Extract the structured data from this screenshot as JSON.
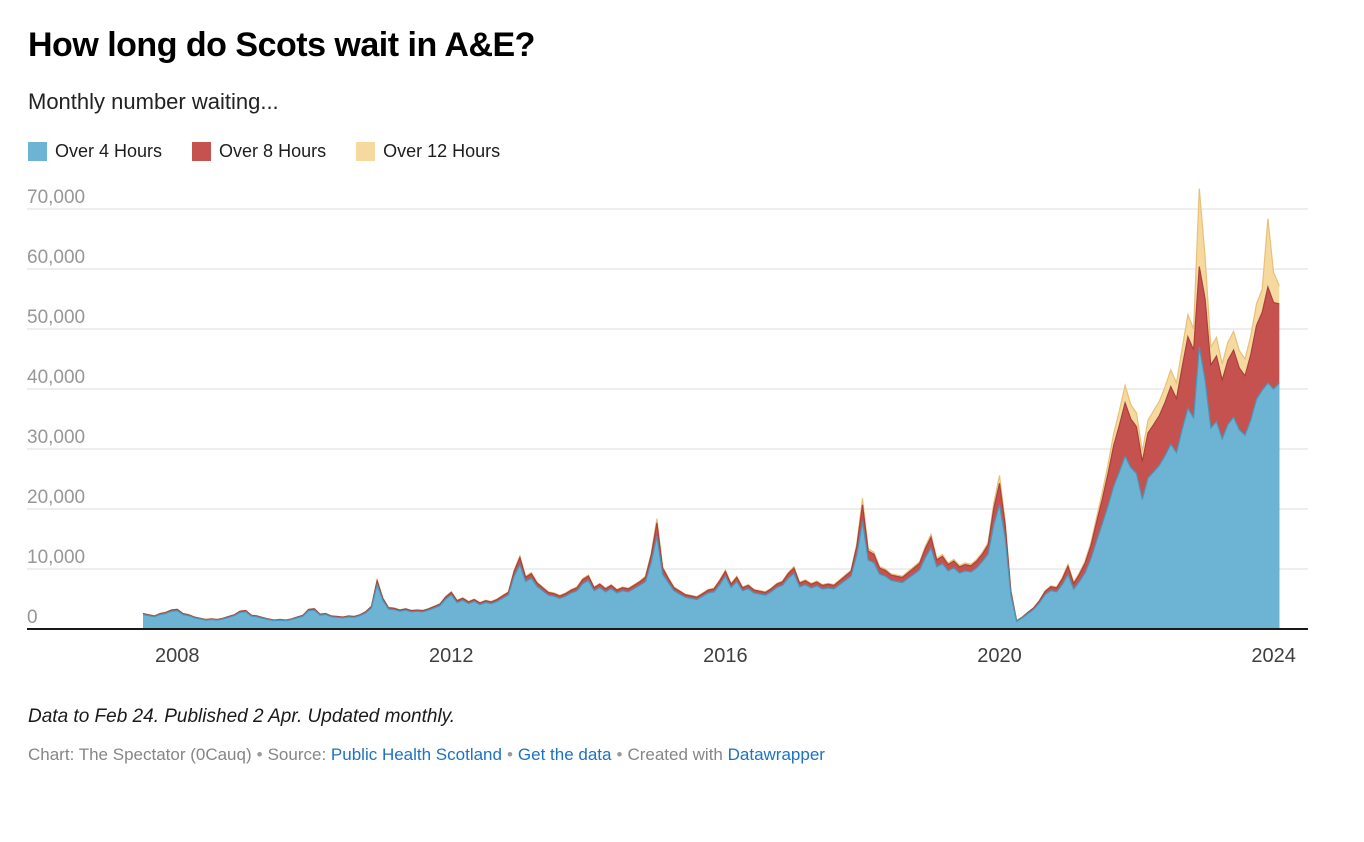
{
  "header": {
    "title": "How long do Scots wait in A&E?",
    "subtitle": "Monthly number waiting..."
  },
  "chart_data": {
    "type": "area",
    "stacked": true,
    "start": "2007-07",
    "end": "2024-02",
    "interval": "month",
    "grid": "horizontal",
    "legend_position": "top",
    "ylim": [
      0,
      73400
    ],
    "x_ticks": [
      {
        "label": "2008",
        "month_index": 6
      },
      {
        "label": "2012",
        "month_index": 54
      },
      {
        "label": "2016",
        "month_index": 102
      },
      {
        "label": "2020",
        "month_index": 150
      },
      {
        "label": "2024",
        "month_index": 198
      }
    ],
    "y_ticks": [
      {
        "value": 0,
        "label": "0"
      },
      {
        "value": 10000,
        "label": "10,000"
      },
      {
        "value": 20000,
        "label": "20,000"
      },
      {
        "value": 30000,
        "label": "30,000"
      },
      {
        "value": 40000,
        "label": "40,000"
      },
      {
        "value": 50000,
        "label": "50,000"
      },
      {
        "value": 60000,
        "label": "60,000"
      },
      {
        "value": 70000,
        "label": "70,000"
      }
    ],
    "series": [
      {
        "name": "Over 4 Hours",
        "color": "#6db3d4",
        "stroke": "#4a95ba",
        "values": [
          2420,
          2230,
          2040,
          2420,
          2600,
          2980,
          3060,
          2420,
          2230,
          1860,
          1680,
          1490,
          1580,
          1490,
          1680,
          1950,
          2230,
          2790,
          2880,
          2140,
          2040,
          1770,
          1580,
          1400,
          1490,
          1400,
          1580,
          1860,
          2140,
          3060,
          3150,
          2320,
          2420,
          2040,
          1950,
          1860,
          2040,
          1950,
          2230,
          2690,
          3520,
          7400,
          4780,
          3330,
          3240,
          2960,
          3150,
          2870,
          2960,
          2870,
          3150,
          3520,
          3880,
          4990,
          5700,
          4420,
          4780,
          4230,
          4600,
          4050,
          4420,
          4230,
          4600,
          5150,
          5700,
          8820,
          10700,
          7920,
          8460,
          7100,
          6370,
          5640,
          5460,
          5100,
          5460,
          6010,
          6370,
          7560,
          8100,
          6370,
          6920,
          6190,
          6730,
          6010,
          6370,
          6190,
          6730,
          7280,
          7920,
          11100,
          15500,
          9150,
          7740,
          6370,
          5820,
          5280,
          5100,
          4910,
          5460,
          6010,
          6190,
          7380,
          8820,
          6920,
          7920,
          6370,
          6730,
          6010,
          5820,
          5640,
          6190,
          6920,
          7280,
          8460,
          9250,
          7020,
          7380,
          6840,
          7200,
          6660,
          6840,
          6660,
          7380,
          8100,
          8820,
          12350,
          17900,
          11500,
          11050,
          9150,
          8800,
          8100,
          7920,
          7740,
          8450,
          9150,
          9850,
          11900,
          13500,
          10380,
          10900,
          9680,
          10200,
          9330,
          9680,
          9500,
          10200,
          11260,
          12500,
          17400,
          20700,
          15100,
          5630,
          1290,
          1850,
          2580,
          3310,
          4380,
          5760,
          6410,
          6200,
          7400,
          9100,
          6630,
          7900,
          9400,
          11700,
          14700,
          17550,
          20500,
          23800,
          26200,
          28800,
          26900,
          25900,
          21600,
          25200,
          26200,
          27300,
          28900,
          30800,
          29400,
          33300,
          36800,
          35200,
          47000,
          41500,
          33500,
          34600,
          31700,
          34100,
          35300,
          33200,
          32300,
          34800,
          38300,
          39800,
          41000,
          40000,
          41000
        ]
      },
      {
        "name": "Over 8 Hours",
        "color": "#c5524e",
        "stroke": "#ab403c",
        "values": [
          150,
          140,
          130,
          150,
          170,
          190,
          200,
          150,
          140,
          120,
          100,
          90,
          100,
          90,
          100,
          130,
          140,
          180,
          180,
          140,
          130,
          110,
          100,
          80,
          90,
          80,
          100,
          120,
          140,
          200,
          210,
          150,
          150,
          130,
          130,
          120,
          130,
          130,
          140,
          180,
          230,
          640,
          340,
          220,
          210,
          190,
          200,
          190,
          190,
          190,
          200,
          230,
          260,
          330,
          400,
          300,
          330,
          290,
          320,
          280,
          300,
          290,
          320,
          360,
          400,
          780,
          1200,
          700,
          750,
          560,
          500,
          450,
          430,
          400,
          430,
          470,
          500,
          670,
          720,
          500,
          540,
          490,
          530,
          470,
          500,
          490,
          530,
          580,
          700,
          1200,
          2200,
          1000,
          690,
          500,
          460,
          410,
          400,
          390,
          430,
          470,
          490,
          660,
          780,
          540,
          700,
          500,
          530,
          470,
          460,
          450,
          490,
          540,
          580,
          750,
          900,
          620,
          660,
          610,
          640,
          590,
          610,
          590,
          660,
          720,
          780,
          1450,
          2800,
          1500,
          1400,
          1000,
          960,
          880,
          860,
          850,
          920,
          1000,
          1080,
          1500,
          1800,
          1140,
          1200,
          1060,
          1120,
          1020,
          1060,
          1040,
          1120,
          1230,
          1500,
          2700,
          3600,
          2200,
          620,
          90,
          120,
          180,
          230,
          340,
          510,
          630,
          640,
          950,
          1350,
          930,
          1200,
          1600,
          2160,
          3100,
          4100,
          5400,
          6800,
          7800,
          8900,
          8100,
          7800,
          6300,
          7500,
          7900,
          8300,
          8900,
          9600,
          9000,
          10400,
          11900,
          11300,
          13400,
          13500,
          10500,
          10900,
          9800,
          10700,
          11200,
          10300,
          9900,
          10900,
          12300,
          13000,
          16000,
          14400,
          13200
        ]
      },
      {
        "name": "Over 12 Hours",
        "color": "#f6d99f",
        "stroke": "#e9c076",
        "values": [
          30,
          30,
          30,
          30,
          30,
          30,
          40,
          30,
          30,
          20,
          20,
          20,
          20,
          20,
          20,
          20,
          30,
          30,
          40,
          20,
          30,
          20,
          20,
          20,
          20,
          20,
          20,
          20,
          20,
          40,
          40,
          30,
          30,
          30,
          20,
          20,
          30,
          20,
          30,
          30,
          50,
          160,
          80,
          50,
          50,
          50,
          50,
          40,
          50,
          40,
          50,
          50,
          60,
          80,
          100,
          80,
          90,
          80,
          80,
          70,
          80,
          80,
          80,
          90,
          100,
          200,
          300,
          180,
          190,
          140,
          130,
          110,
          110,
          100,
          110,
          120,
          130,
          170,
          180,
          130,
          140,
          120,
          140,
          120,
          130,
          120,
          140,
          140,
          180,
          300,
          700,
          250,
          170,
          130,
          120,
          110,
          100,
          100,
          110,
          120,
          120,
          160,
          200,
          140,
          180,
          130,
          140,
          120,
          120,
          110,
          120,
          140,
          140,
          190,
          250,
          160,
          160,
          150,
          160,
          150,
          150,
          150,
          160,
          180,
          200,
          400,
          1100,
          400,
          350,
          250,
          240,
          220,
          220,
          210,
          230,
          250,
          270,
          400,
          500,
          280,
          300,
          260,
          280,
          250,
          260,
          260,
          280,
          310,
          400,
          900,
          1300,
          700,
          150,
          20,
          30,
          40,
          60,
          80,
          130,
          160,
          160,
          250,
          350,
          240,
          300,
          400,
          540,
          800,
          1150,
          1500,
          2000,
          2400,
          2900,
          2400,
          2300,
          1700,
          2100,
          2300,
          2400,
          2600,
          2800,
          2600,
          3100,
          3700,
          3500,
          13000,
          7000,
          3000,
          3100,
          2700,
          3000,
          3100,
          2900,
          2800,
          3100,
          3600,
          3800,
          11400,
          5000,
          3000
        ]
      }
    ]
  },
  "footer": {
    "note": "Data to Feb 24. Published 2 Apr. Updated monthly.",
    "byline": "Chart: The Spectator (0Cauq)",
    "separator": "•",
    "source_label": "Source:",
    "source_link": "Public Health Scotland",
    "get_data_link": "Get the data",
    "created_with": "Created with",
    "creator_link": "Datawrapper"
  }
}
